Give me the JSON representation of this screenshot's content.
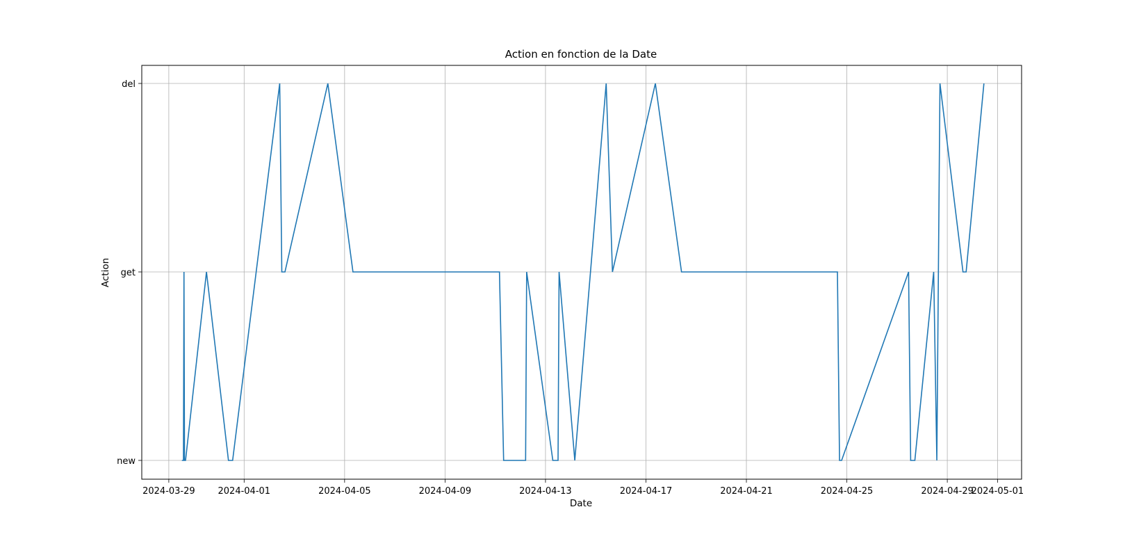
{
  "chart_data": {
    "type": "line",
    "title": "Action en fonction de la Date",
    "xlabel": "Date",
    "ylabel": "Action",
    "categories_y": [
      "new",
      "get",
      "del"
    ],
    "xlim": [
      "2024-03-27T22:10",
      "2024-05-01T23:00"
    ],
    "x_ticks": [
      "2024-03-29",
      "2024-04-01",
      "2024-04-05",
      "2024-04-09",
      "2024-04-13",
      "2024-04-17",
      "2024-04-21",
      "2024-04-25",
      "2024-04-29",
      "2024-05-01"
    ],
    "grid": true,
    "series": [
      {
        "color": "#1f77b4",
        "points": [
          {
            "x": "2024-03-29T12:30",
            "y": "new"
          },
          {
            "x": "2024-03-29T14:00",
            "y": "new"
          },
          {
            "x": "2024-03-29T14:30",
            "y": "get"
          },
          {
            "x": "2024-03-29T15:00",
            "y": "new"
          },
          {
            "x": "2024-03-29T16:00",
            "y": "new"
          },
          {
            "x": "2024-03-30T12:00",
            "y": "get"
          },
          {
            "x": "2024-03-31T09:00",
            "y": "new"
          },
          {
            "x": "2024-03-31T13:00",
            "y": "new"
          },
          {
            "x": "2024-04-02T10:00",
            "y": "del"
          },
          {
            "x": "2024-04-02T12:00",
            "y": "get"
          },
          {
            "x": "2024-04-02T15:00",
            "y": "get"
          },
          {
            "x": "2024-04-04T08:00",
            "y": "del"
          },
          {
            "x": "2024-04-05T08:00",
            "y": "get"
          },
          {
            "x": "2024-04-11T04:00",
            "y": "get"
          },
          {
            "x": "2024-04-11T08:00",
            "y": "new"
          },
          {
            "x": "2024-04-12T05:00",
            "y": "new"
          },
          {
            "x": "2024-04-12T06:00",
            "y": "get"
          },
          {
            "x": "2024-04-13T07:00",
            "y": "new"
          },
          {
            "x": "2024-04-13T12:00",
            "y": "new"
          },
          {
            "x": "2024-04-13T13:00",
            "y": "get"
          },
          {
            "x": "2024-04-14T04:00",
            "y": "new"
          },
          {
            "x": "2024-04-15T10:00",
            "y": "del"
          },
          {
            "x": "2024-04-15T16:00",
            "y": "get"
          },
          {
            "x": "2024-04-17T09:00",
            "y": "del"
          },
          {
            "x": "2024-04-18T10:00",
            "y": "get"
          },
          {
            "x": "2024-04-24T15:00",
            "y": "get"
          },
          {
            "x": "2024-04-24T17:00",
            "y": "new"
          },
          {
            "x": "2024-04-24T19:00",
            "y": "new"
          },
          {
            "x": "2024-04-27T11:00",
            "y": "get"
          },
          {
            "x": "2024-04-27T13:00",
            "y": "new"
          },
          {
            "x": "2024-04-27T17:00",
            "y": "new"
          },
          {
            "x": "2024-04-28T11:00",
            "y": "get"
          },
          {
            "x": "2024-04-28T14:00",
            "y": "new"
          },
          {
            "x": "2024-04-28T17:00",
            "y": "del"
          },
          {
            "x": "2024-04-29T15:00",
            "y": "get"
          },
          {
            "x": "2024-04-29T18:00",
            "y": "get"
          },
          {
            "x": "2024-04-30T11:00",
            "y": "del"
          }
        ]
      }
    ]
  }
}
